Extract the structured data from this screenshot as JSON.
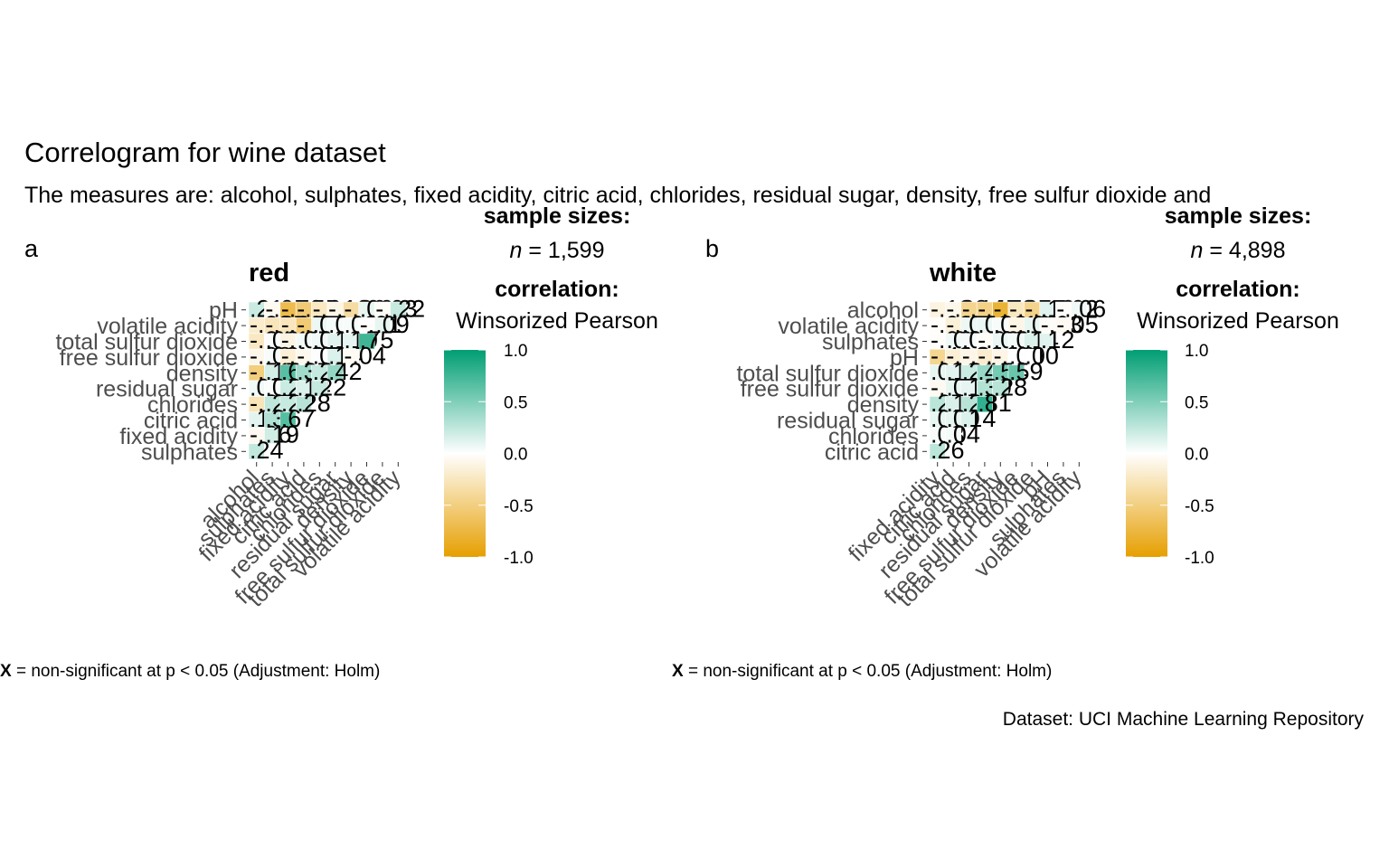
{
  "title": "Correlogram for wine dataset",
  "subtitle": "The measures are: alcohol, sulphates, fixed acidity, citric acid, chlorides, residual sugar, density, free sulfur dioxide and",
  "caption": "Dataset: UCI Machine Learning Repository",
  "colors": {
    "low": "#E69F00",
    "mid": "#FFFFFF",
    "high": "#009E73"
  },
  "chart_data": [
    {
      "type": "heatmap",
      "panel_tag": "a",
      "title": "red",
      "legend_title": "correlation:",
      "legend_subtitle": "Winsorized Pearson",
      "sample_size_title": "sample sizes:",
      "sample_size_n": "n",
      "sample_size_value": "= 1,599",
      "legend_ticks": [
        "1.0",
        "0.5",
        "0.0",
        "-0.5",
        "-1.0"
      ],
      "legend_range": [
        -1,
        1
      ],
      "footnote_mark": "X",
      "footnote": "= non-significant at p < 0.05 (Adjustment: Holm)",
      "y_labels": [
        "pH",
        "volatile acidity",
        "total sulfur dioxide",
        "free sulfur dioxide",
        "density",
        "residual sugar",
        "chlorides",
        "citric acid",
        "fixed acidity",
        "sulphates"
      ],
      "x_labels": [
        "alcohol",
        "sulphates",
        "fixed acidity",
        "citric acid",
        "chlorides",
        "residual sugar",
        "density",
        "free sulfur dioxide",
        "total sulfur dioxide",
        "volatile acidity"
      ],
      "cells": [
        [
          0.21,
          -0.05,
          -0.7,
          -0.55,
          -0.24,
          -0.1,
          -0.36,
          0.09,
          -0.03,
          0.22
        ],
        [
          -0.2,
          -0.27,
          -0.26,
          -0.55,
          0.07,
          0.04,
          0.03,
          -0.01,
          0.09,
          null
        ],
        [
          -0.24,
          0.02,
          -0.11,
          0.05,
          0.06,
          0.12,
          0.1,
          0.75,
          null,
          null
        ],
        [
          -0.08,
          0.03,
          -0.16,
          -0.07,
          0.01,
          0.14,
          -0.04,
          null,
          null,
          null
        ],
        [
          -0.51,
          0.17,
          0.66,
          0.37,
          0.22,
          0.42,
          null,
          null,
          null,
          null
        ],
        [
          0.05,
          0.02,
          0.21,
          0.14,
          0.22,
          null,
          null,
          null,
          null,
          null
        ],
        [
          -0.28,
          0.25,
          0.22,
          0.28,
          null,
          null,
          null,
          null,
          null,
          null
        ],
        [
          0.11,
          0.31,
          0.67,
          null,
          null,
          null,
          null,
          null,
          null,
          null
        ],
        [
          -0.06,
          0.19,
          null,
          null,
          null,
          null,
          null,
          null,
          null,
          null
        ],
        [
          0.24,
          null,
          null,
          null,
          null,
          null,
          null,
          null,
          null,
          null
        ]
      ]
    },
    {
      "type": "heatmap",
      "panel_tag": "b",
      "title": "white",
      "legend_title": "correlation:",
      "legend_subtitle": "Winsorized Pearson",
      "sample_size_title": "sample sizes:",
      "sample_size_n": "n",
      "sample_size_value": "= 4,898",
      "legend_ticks": [
        "1.0",
        "0.5",
        "0.0",
        "-0.5",
        "-1.0"
      ],
      "legend_range": [
        -1,
        1
      ],
      "footnote_mark": "X",
      "footnote": "= non-significant at p < 0.05 (Adjustment: Holm)",
      "y_labels": [
        "alcohol",
        "volatile acidity",
        "sulphates",
        "pH",
        "total sulfur dioxide",
        "free sulfur dioxide",
        "density",
        "residual sugar",
        "chlorides",
        "citric acid"
      ],
      "x_labels": [
        "fixed acidity",
        "citric acid",
        "chlorides",
        "residual sugar",
        "density",
        "free sulfur dioxide",
        "total sulfur dioxide",
        "pH",
        "sulphates",
        "volatile acidity"
      ],
      "cells": [
        [
          -0.12,
          -0.08,
          -0.44,
          -0.47,
          -0.79,
          -0.25,
          -0.45,
          0.12,
          -0.02,
          0.06
        ],
        [
          -0.02,
          -0.15,
          0.07,
          0.08,
          0.03,
          -0.1,
          0.09,
          -0.03,
          -0.05,
          null
        ],
        [
          -0.02,
          0.06,
          0.04,
          -0.03,
          0.08,
          0.05,
          0.14,
          0.12,
          null,
          null
        ],
        [
          -0.43,
          -0.16,
          -0.09,
          -0.19,
          -0.1,
          0.0,
          0.0,
          null,
          null,
          null
        ],
        [
          0.09,
          0.11,
          0.21,
          0.4,
          0.54,
          0.59,
          null,
          null,
          null,
          null
        ],
        [
          -0.05,
          0.09,
          0.1,
          0.3,
          0.28,
          null,
          null,
          null,
          null,
          null
        ],
        [
          0.27,
          0.15,
          0.28,
          0.81,
          null,
          null,
          null,
          null,
          null,
          null
        ],
        [
          0.09,
          0.09,
          0.14,
          null,
          null,
          null,
          null,
          null,
          null,
          null
        ],
        [
          0.03,
          0.04,
          null,
          null,
          null,
          null,
          null,
          null,
          null,
          null
        ],
        [
          0.26,
          null,
          null,
          null,
          null,
          null,
          null,
          null,
          null,
          null
        ]
      ]
    }
  ]
}
